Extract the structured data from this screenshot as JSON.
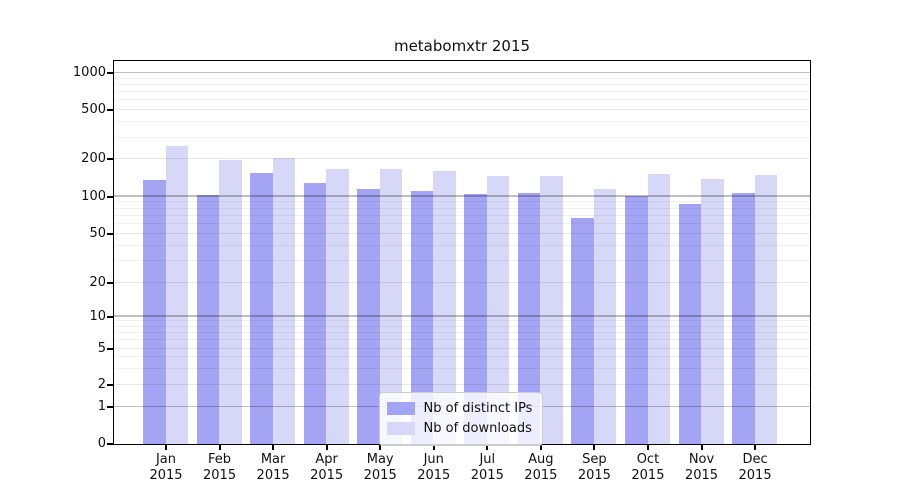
{
  "title": "metabomxtr 2015",
  "colors": {
    "distinct_ips": "#a4a4f4",
    "downloads": "#d7d7f8",
    "axis": "#000000",
    "major_grid": "#bfbfbf",
    "minor_grid": "#ebebeb"
  },
  "legend": {
    "items": [
      {
        "label": "Nb of distinct IPs",
        "series": "distinct_ips"
      },
      {
        "label": "Nb of downloads",
        "series": "downloads"
      }
    ]
  },
  "y_axis": {
    "tick_labels": [
      "1000",
      "500",
      "200",
      "100",
      "50",
      "20",
      "10",
      "5",
      "2",
      "1",
      "0"
    ]
  },
  "x_axis": {
    "months": [
      "Jan",
      "Feb",
      "Mar",
      "Apr",
      "May",
      "Jun",
      "Jul",
      "Aug",
      "Sep",
      "Oct",
      "Nov",
      "Dec"
    ],
    "year": "2015"
  },
  "chart_data": {
    "type": "bar",
    "title": "metabomxtr 2015",
    "y_scale": "log",
    "ylim": [
      0,
      1250
    ],
    "y_ticks": [
      1000,
      500,
      200,
      100,
      50,
      20,
      10,
      5,
      2,
      1,
      0
    ],
    "grid": true,
    "legend_position": "lower center",
    "categories": [
      "Jan 2015",
      "Feb 2015",
      "Mar 2015",
      "Apr 2015",
      "May 2015",
      "Jun 2015",
      "Jul 2015",
      "Aug 2015",
      "Sep 2015",
      "Oct 2015",
      "Nov 2015",
      "Dec 2015"
    ],
    "series": [
      {
        "name": "Nb of distinct IPs",
        "key": "distinct_ips",
        "color": "#a4a4f4",
        "values": [
          135,
          102,
          155,
          128,
          113,
          110,
          104,
          106,
          67,
          101,
          87,
          106
        ]
      },
      {
        "name": "Nb of downloads",
        "key": "downloads",
        "color": "#d7d7f8",
        "values": [
          253,
          197,
          205,
          167,
          167,
          160,
          146,
          144,
          114,
          151,
          138,
          147
        ]
      }
    ]
  }
}
